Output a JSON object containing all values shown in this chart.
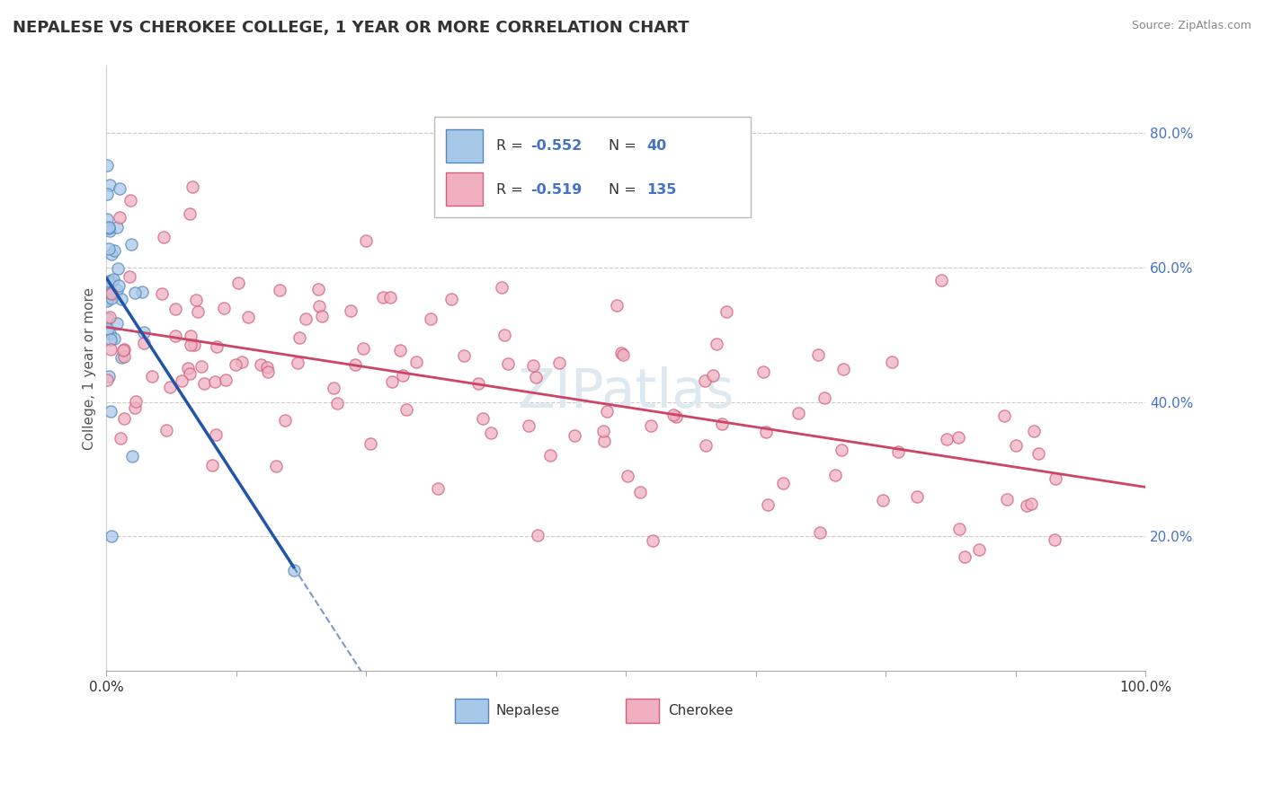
{
  "title": "NEPALESE VS CHEROKEE COLLEGE, 1 YEAR OR MORE CORRELATION CHART",
  "source": "Source: ZipAtlas.com",
  "ylabel": "College, 1 year or more",
  "right_ytick_labels": [
    "20.0%",
    "40.0%",
    "60.0%",
    "80.0%"
  ],
  "right_ytick_values": [
    0.2,
    0.4,
    0.6,
    0.8
  ],
  "legend_r1": "R = -0.552",
  "legend_n1": "N =  40",
  "legend_r2": "R = -0.519",
  "legend_n2": "N = 135",
  "blue_fill": "#a8c8e8",
  "blue_edge": "#5588bb",
  "blue_line": "#2255aa",
  "pink_fill": "#f0b0c0",
  "pink_edge": "#d06080",
  "pink_line": "#cc4466",
  "background_color": "#ffffff",
  "grid_color": "#cccccc",
  "watermark_color": "#dde8f0",
  "title_color": "#333333",
  "source_color": "#888888",
  "axis_label_color": "#555555",
  "right_axis_color": "#4472c4",
  "legend_text_color": "#333333",
  "legend_value_color": "#4472c4"
}
